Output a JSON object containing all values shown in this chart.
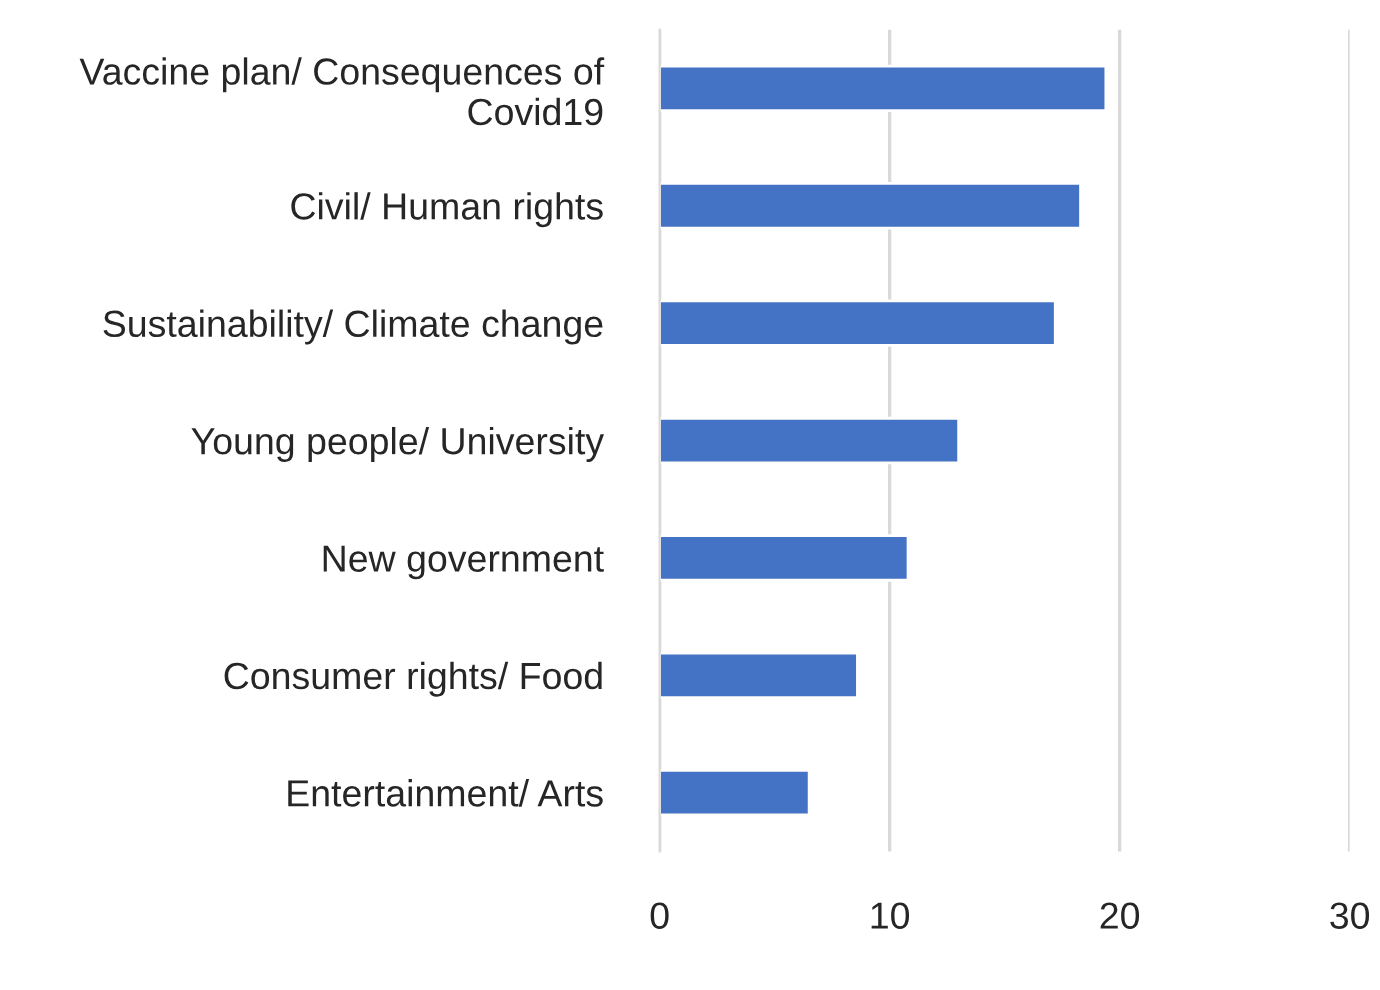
{
  "chart_data": {
    "type": "bar",
    "orientation": "horizontal",
    "categories": [
      "Vaccine plan/ Consequences of Covid19",
      "Civil/ Human rights",
      "Sustainability/ Climate change",
      "Young people/ University",
      "New government",
      "Consumer rights/ Food",
      "Entertainment/ Arts"
    ],
    "values": [
      19.4,
      18.3,
      17.2,
      13.0,
      10.8,
      8.6,
      6.5
    ],
    "color": "#4472c4",
    "xlim": [
      0,
      30
    ],
    "xticks": [
      0,
      10,
      20,
      30
    ],
    "grid": "x"
  }
}
